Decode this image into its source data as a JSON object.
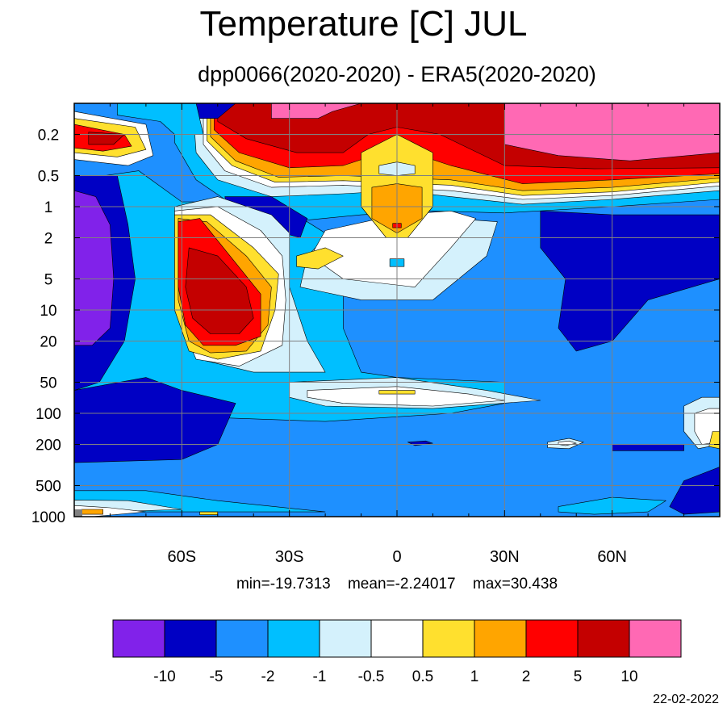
{
  "chart_data": {
    "type": "heatmap",
    "title": "Temperature [C] JUL",
    "subtitle": "dpp0066(2020-2020) - ERA5(2020-2020)",
    "xlabel": "",
    "ylabel": "",
    "x_ticks": [
      {
        "lat": -60,
        "label": "60S"
      },
      {
        "lat": -30,
        "label": "30S"
      },
      {
        "lat": 0,
        "label": "0"
      },
      {
        "lat": 30,
        "label": "30N"
      },
      {
        "lat": 60,
        "label": "60N"
      }
    ],
    "xlim": [
      -90,
      90
    ],
    "y_ticks": [
      {
        "p": 0.2,
        "label": "0.2"
      },
      {
        "p": 0.5,
        "label": "0.5"
      },
      {
        "p": 1,
        "label": "1"
      },
      {
        "p": 2,
        "label": "2"
      },
      {
        "p": 5,
        "label": "5"
      },
      {
        "p": 10,
        "label": "10"
      },
      {
        "p": 20,
        "label": "20"
      },
      {
        "p": 50,
        "label": "50"
      },
      {
        "p": 100,
        "label": "100"
      },
      {
        "p": 200,
        "label": "200"
      },
      {
        "p": 500,
        "label": "500"
      },
      {
        "p": 1000,
        "label": "1000"
      }
    ],
    "ylim": [
      0.1,
      1000
    ],
    "y_scale": "log-inverted",
    "grid": true,
    "stats": {
      "min": "min=-19.7313",
      "mean": "mean=-2.24017",
      "max": "max=30.438"
    },
    "colorbar": {
      "colors": [
        "#8122EA",
        "#0000C4",
        "#1E90FF",
        "#00BFFF",
        "#D4F1FC",
        "#FFFFFF",
        "#FFE02E",
        "#FFA500",
        "#FF0000",
        "#C40000",
        "#FF69B4"
      ],
      "levels": [
        "-10",
        "-5",
        "-2",
        "-1",
        "-0.5",
        "0.5",
        "1",
        "2",
        "5",
        "10"
      ]
    },
    "regions": [
      {
        "level": 1,
        "pts": [
          [
            -90,
            0.5
          ],
          [
            -78,
            0.5
          ],
          [
            -75,
            1.5
          ],
          [
            -73,
            5
          ],
          [
            -76,
            20
          ],
          [
            -83,
            50
          ],
          [
            -90,
            60
          ]
        ]
      },
      {
        "level": 0,
        "pts": [
          [
            -90,
            0.7
          ],
          [
            -84,
            0.8
          ],
          [
            -80,
            1.5
          ],
          [
            -79,
            5
          ],
          [
            -80,
            15
          ],
          [
            -85,
            22
          ],
          [
            -90,
            22
          ]
        ]
      },
      {
        "level": 1,
        "pts": [
          [
            -60,
            0.1
          ],
          [
            -45,
            0.1
          ],
          [
            -50,
            0.14
          ],
          [
            -58,
            0.14
          ]
        ]
      },
      {
        "level": 3,
        "pts": [
          [
            -78,
            0.1
          ],
          [
            -56,
            0.1
          ],
          [
            -54,
            0.2
          ],
          [
            -62,
            0.2
          ],
          [
            -66,
            0.15
          ],
          [
            -78,
            0.13
          ]
        ]
      },
      {
        "level": 5,
        "pts": [
          [
            -90,
            0.12
          ],
          [
            -70,
            0.16
          ],
          [
            -68,
            0.32
          ],
          [
            -75,
            0.4
          ],
          [
            -90,
            0.35
          ]
        ]
      },
      {
        "level": 6,
        "pts": [
          [
            -90,
            0.14
          ],
          [
            -73,
            0.17
          ],
          [
            -70,
            0.28
          ],
          [
            -78,
            0.33
          ],
          [
            -90,
            0.3
          ]
        ]
      },
      {
        "level": 8,
        "pts": [
          [
            -90,
            0.16
          ],
          [
            -76,
            0.2
          ],
          [
            -74,
            0.26
          ],
          [
            -82,
            0.29
          ],
          [
            -90,
            0.27
          ]
        ]
      },
      {
        "level": 9,
        "pts": [
          [
            -86,
            0.19
          ],
          [
            -76,
            0.2
          ],
          [
            -79,
            0.25
          ],
          [
            -86,
            0.25
          ]
        ]
      },
      {
        "level": 1,
        "pts": [
          [
            -48,
            0.8
          ],
          [
            -35,
            0.8
          ],
          [
            -25,
            1.3
          ],
          [
            -27,
            2
          ],
          [
            -40,
            1.5
          ],
          [
            -47,
            1.2
          ]
        ]
      },
      {
        "level": 4,
        "pts": [
          [
            -62,
            1
          ],
          [
            -50,
            0.8
          ],
          [
            -35,
            1.2
          ],
          [
            -30,
            1.8
          ],
          [
            -30,
            6
          ],
          [
            -25,
            20
          ],
          [
            -20,
            40
          ],
          [
            -40,
            40
          ],
          [
            -55,
            30
          ],
          [
            -62,
            10
          ]
        ]
      },
      {
        "level": 5,
        "pts": [
          [
            -62,
            1.1
          ],
          [
            -50,
            1
          ],
          [
            -38,
            1.7
          ],
          [
            -32,
            3
          ],
          [
            -31,
            8
          ],
          [
            -32,
            22
          ],
          [
            -44,
            35
          ],
          [
            -56,
            30
          ],
          [
            -62,
            10
          ]
        ]
      },
      {
        "level": 6,
        "pts": [
          [
            -62,
            1.2
          ],
          [
            -52,
            1.2
          ],
          [
            -40,
            2.5
          ],
          [
            -33,
            4.5
          ],
          [
            -34,
            10
          ],
          [
            -38,
            25
          ],
          [
            -50,
            30
          ],
          [
            -58,
            25
          ],
          [
            -62,
            10
          ]
        ]
      },
      {
        "level": 7,
        "pts": [
          [
            -61,
            1.3
          ],
          [
            -53,
            1.4
          ],
          [
            -42,
            3
          ],
          [
            -35,
            6
          ],
          [
            -36,
            14
          ],
          [
            -42,
            25
          ],
          [
            -52,
            26
          ],
          [
            -58,
            20
          ],
          [
            -61,
            8
          ]
        ]
      },
      {
        "level": 8,
        "pts": [
          [
            -61,
            1.4
          ],
          [
            -55,
            1.3
          ],
          [
            -45,
            3.5
          ],
          [
            -38,
            7
          ],
          [
            -38,
            18
          ],
          [
            -45,
            22
          ],
          [
            -54,
            22
          ],
          [
            -59,
            14
          ],
          [
            -61,
            6
          ]
        ]
      },
      {
        "level": 9,
        "pts": [
          [
            -58,
            2.5
          ],
          [
            -50,
            3
          ],
          [
            -42,
            6
          ],
          [
            -40,
            12
          ],
          [
            -44,
            17
          ],
          [
            -52,
            17
          ],
          [
            -57,
            12
          ],
          [
            -59,
            6
          ]
        ]
      },
      {
        "level": 4,
        "pts": [
          [
            -20,
            2
          ],
          [
            0,
            1.5
          ],
          [
            15,
            1.3
          ],
          [
            28,
            1.4
          ],
          [
            25,
            3
          ],
          [
            10,
            8
          ],
          [
            -10,
            8
          ],
          [
            -27,
            6
          ],
          [
            -25,
            3
          ]
        ]
      },
      {
        "level": 5,
        "pts": [
          [
            -20,
            1.7
          ],
          [
            0,
            1.2
          ],
          [
            15,
            1.1
          ],
          [
            22,
            1.3
          ],
          [
            15,
            2.5
          ],
          [
            5,
            6
          ],
          [
            -15,
            5
          ],
          [
            -24,
            3
          ]
        ]
      },
      {
        "level": 6,
        "pts": [
          [
            -28,
            3
          ],
          [
            -20,
            2.5
          ],
          [
            -15,
            3
          ],
          [
            -22,
            4
          ],
          [
            -28,
            3.8
          ]
        ]
      },
      {
        "level": 3,
        "pts": [
          [
            -2,
            3.2
          ],
          [
            2,
            3.2
          ],
          [
            2,
            3.8
          ],
          [
            -2,
            3.8
          ]
        ]
      },
      {
        "level": 6,
        "pts": [
          [
            -10,
            0.3
          ],
          [
            0,
            0.2
          ],
          [
            10,
            0.3
          ],
          [
            10,
            1
          ],
          [
            3,
            2
          ],
          [
            -3,
            2
          ],
          [
            -10,
            1
          ]
        ]
      },
      {
        "level": 7,
        "pts": [
          [
            -7,
            0.65
          ],
          [
            0,
            0.6
          ],
          [
            7,
            0.65
          ],
          [
            7,
            1.3
          ],
          [
            0,
            1.8
          ],
          [
            -7,
            1.3
          ]
        ]
      },
      {
        "level": 8,
        "pts": [
          [
            -1.2,
            1.45
          ],
          [
            1.2,
            1.45
          ],
          [
            1.2,
            1.6
          ],
          [
            -1.2,
            1.6
          ]
        ]
      },
      {
        "level": 4,
        "pts": [
          [
            -5,
            0.4
          ],
          [
            0,
            0.37
          ],
          [
            5,
            0.4
          ],
          [
            5,
            0.48
          ],
          [
            0,
            0.5
          ],
          [
            -5,
            0.48
          ]
        ]
      },
      {
        "level": 4,
        "pts": [
          [
            -30,
            50
          ],
          [
            0,
            45
          ],
          [
            25,
            60
          ],
          [
            40,
            75
          ],
          [
            10,
            90
          ],
          [
            -20,
            85
          ],
          [
            -30,
            70
          ]
        ]
      },
      {
        "level": 5,
        "pts": [
          [
            -25,
            60
          ],
          [
            0,
            55
          ],
          [
            20,
            65
          ],
          [
            30,
            75
          ],
          [
            10,
            85
          ],
          [
            -15,
            80
          ],
          [
            -25,
            70
          ]
        ]
      },
      {
        "level": 6,
        "pts": [
          [
            -5,
            60
          ],
          [
            5,
            60
          ],
          [
            5,
            65
          ],
          [
            -5,
            65
          ]
        ]
      },
      {
        "level": 4,
        "pts": [
          [
            42,
            190
          ],
          [
            48,
            175
          ],
          [
            52,
            190
          ],
          [
            48,
            220
          ],
          [
            42,
            215
          ]
        ]
      },
      {
        "level": 5,
        "pts": [
          [
            45,
            190
          ],
          [
            48,
            185
          ],
          [
            50,
            195
          ],
          [
            47,
            205
          ],
          [
            45,
            200
          ]
        ]
      },
      {
        "level": 4,
        "pts": [
          [
            80,
            85
          ],
          [
            85,
            70
          ],
          [
            90,
            70
          ],
          [
            90,
            200
          ],
          [
            84,
            220
          ],
          [
            80,
            150
          ]
        ]
      },
      {
        "level": 5,
        "pts": [
          [
            83,
            100
          ],
          [
            87,
            90
          ],
          [
            90,
            90
          ],
          [
            90,
            190
          ],
          [
            85,
            200
          ],
          [
            83,
            150
          ]
        ]
      },
      {
        "level": 6,
        "pts": [
          [
            88,
            150
          ],
          [
            90,
            150
          ],
          [
            90,
            220
          ],
          [
            87,
            210
          ]
        ]
      },
      {
        "level": 1,
        "pts": [
          [
            90,
            330
          ],
          [
            80,
            450
          ],
          [
            76,
            800
          ],
          [
            80,
            950
          ],
          [
            90,
            900
          ]
        ]
      },
      {
        "level": 1,
        "pts": [
          [
            40,
            1.1
          ],
          [
            60,
            1.2
          ],
          [
            90,
            1.2
          ],
          [
            90,
            5
          ],
          [
            70,
            8
          ],
          [
            60,
            20
          ],
          [
            50,
            25
          ],
          [
            45,
            15
          ],
          [
            47,
            5
          ],
          [
            40,
            2.5
          ]
        ]
      },
      {
        "level": 1,
        "pts": [
          [
            60,
            200
          ],
          [
            80,
            200
          ],
          [
            80,
            230
          ],
          [
            60,
            230
          ]
        ]
      },
      {
        "level": 1,
        "pts": [
          [
            3,
            190
          ],
          [
            8,
            185
          ],
          [
            10,
            195
          ],
          [
            5,
            205
          ]
        ]
      },
      {
        "level": 3,
        "pts": [
          [
            -90,
            560
          ],
          [
            -70,
            560
          ],
          [
            -50,
            700
          ],
          [
            -20,
            900
          ],
          [
            -50,
            900
          ],
          [
            -90,
            900
          ]
        ]
      },
      {
        "level": 4,
        "pts": [
          [
            -90,
            690
          ],
          [
            -75,
            700
          ],
          [
            -60,
            850
          ],
          [
            -80,
            900
          ],
          [
            -90,
            900
          ]
        ]
      },
      {
        "level": 5,
        "pts": [
          [
            -90,
            780
          ],
          [
            -80,
            820
          ],
          [
            -70,
            900
          ],
          [
            -85,
            1000
          ],
          [
            -90,
            1000
          ]
        ]
      },
      {
        "level": 6,
        "pts": [
          [
            -55,
            900
          ],
          [
            -50,
            900
          ],
          [
            -50,
            960
          ],
          [
            -55,
            960
          ]
        ]
      },
      {
        "level": 7,
        "pts": [
          [
            -88,
            850
          ],
          [
            -82,
            850
          ],
          [
            -82,
            950
          ],
          [
            -88,
            950
          ]
        ]
      },
      {
        "level": 3,
        "pts": [
          [
            45,
            800
          ],
          [
            60,
            650
          ],
          [
            75,
            700
          ],
          [
            70,
            900
          ],
          [
            55,
            950
          ],
          [
            45,
            900
          ]
        ]
      }
    ]
  }
}
